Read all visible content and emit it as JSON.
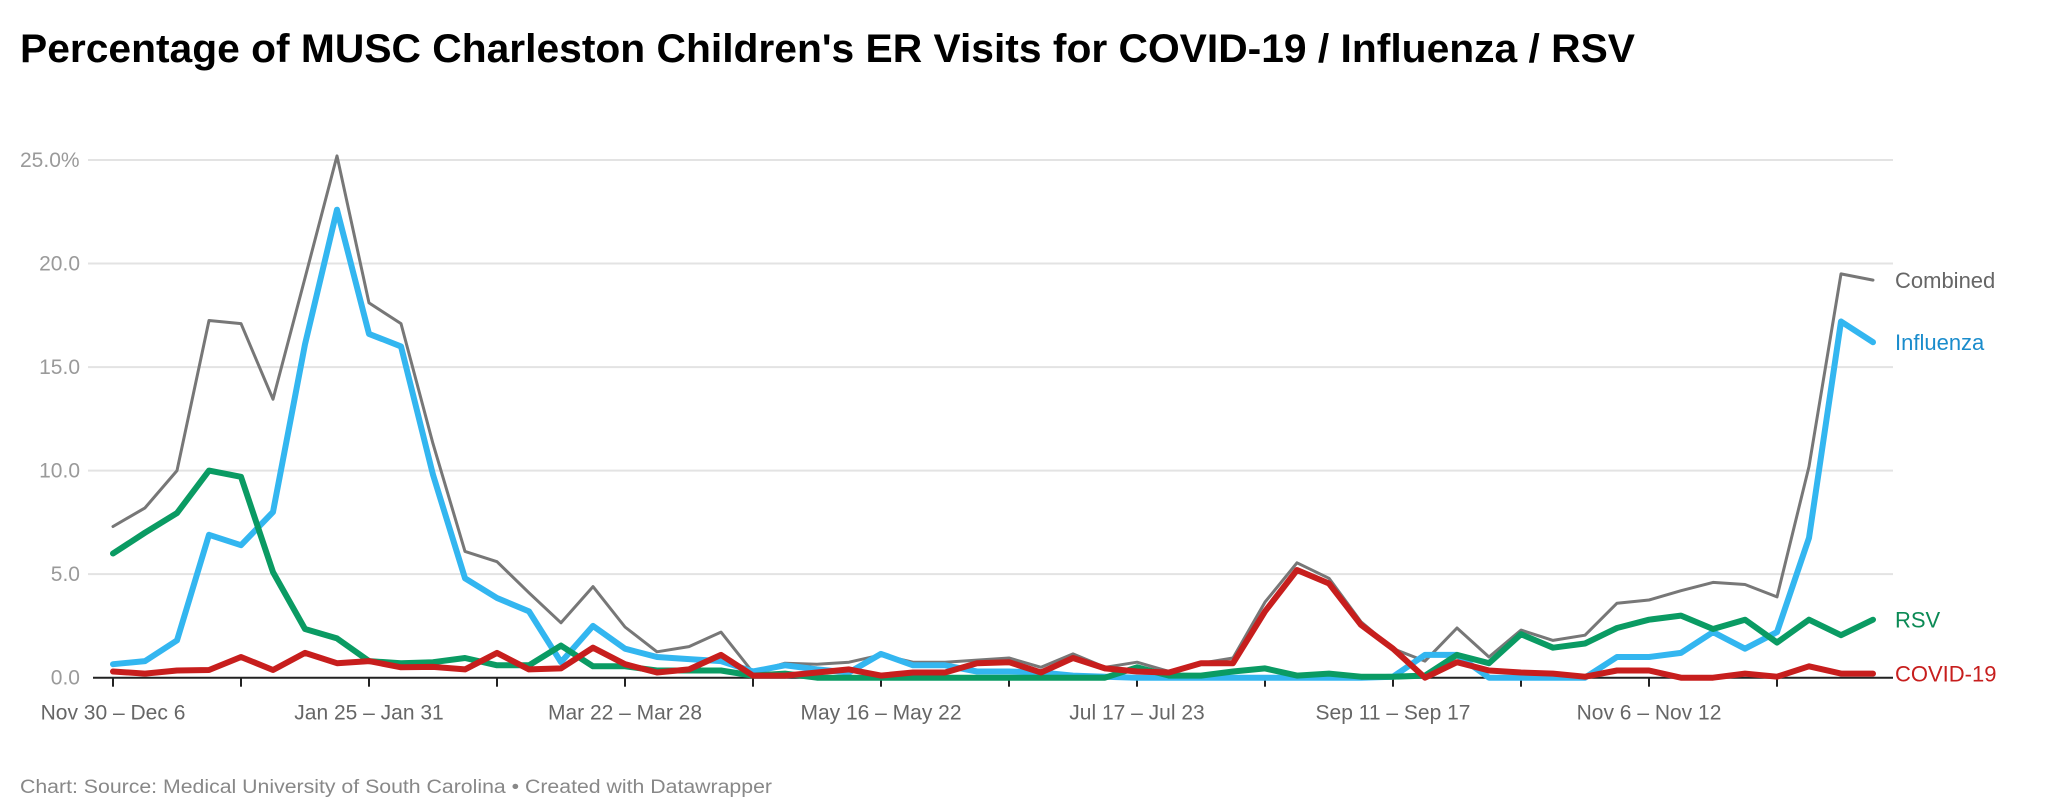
{
  "title": "Percentage of MUSC Charleston Children's ER Visits for COVID-19 / Influenza / RSV",
  "footer": "Chart: Source: Medical University of South Carolina • Created with Datawrapper",
  "chart_data": {
    "type": "line",
    "title": "Percentage of MUSC Charleston Children's ER Visits for COVID-19 / Influenza / RSV",
    "xlabel": "",
    "ylabel": "",
    "ylim": [
      0,
      25
    ],
    "grid": true,
    "legend": "direct labels at line ends (right)",
    "y_ticks": [
      {
        "value": 0,
        "label": "0.0"
      },
      {
        "value": 5,
        "label": "5.0"
      },
      {
        "value": 10,
        "label": "10.0"
      },
      {
        "value": 15,
        "label": "15.0"
      },
      {
        "value": 20,
        "label": "20.0"
      },
      {
        "value": 25,
        "label": "25.0%"
      }
    ],
    "x_tick_labels": [
      {
        "week": 0,
        "label": "Nov 30 – Dec 6"
      },
      {
        "week": 8,
        "label": "Jan 25 – Jan 31"
      },
      {
        "week": 16,
        "label": "Mar 22 – Mar 28"
      },
      {
        "week": 24,
        "label": "May 16 – May 22"
      },
      {
        "week": 32,
        "label": "Jul 17 – Jul 23"
      },
      {
        "week": 40,
        "label": "Sep 11 – Sep 17"
      },
      {
        "week": 48,
        "label": "Nov 6 – Nov 12"
      }
    ],
    "series": [
      {
        "name": "Combined",
        "color": "#777777",
        "label_color": "#666666",
        "values": [
          7.3,
          8.2,
          10.0,
          17.25,
          17.1,
          13.45,
          19.3,
          25.2,
          18.1,
          17.1,
          11.3,
          6.1,
          5.6,
          4.1,
          2.65,
          4.4,
          2.45,
          1.25,
          1.5,
          2.2,
          0.25,
          0.7,
          0.65,
          0.75,
          1.1,
          0.75,
          0.75,
          0.85,
          0.95,
          0.5,
          1.15,
          0.5,
          0.75,
          0.3,
          0.7,
          0.95,
          3.65,
          5.55,
          4.8,
          2.7,
          1.4,
          0.8,
          2.4,
          1.0,
          2.3,
          1.8,
          2.05,
          3.6,
          3.75,
          4.2,
          4.6,
          4.5,
          3.9,
          10.2,
          19.5,
          19.2
        ]
      },
      {
        "name": "Influenza",
        "color": "#33b6f0",
        "label_color": "#1a8ccc",
        "values": [
          0.65,
          0.8,
          1.8,
          6.9,
          6.4,
          8.0,
          16.1,
          22.6,
          16.6,
          16.0,
          9.8,
          4.8,
          3.85,
          3.2,
          0.75,
          2.5,
          1.4,
          1.0,
          0.9,
          0.8,
          0.3,
          0.6,
          0.4,
          0.25,
          1.15,
          0.6,
          0.6,
          0.3,
          0.3,
          0.25,
          0.1,
          0.05,
          0,
          0,
          0,
          0,
          0,
          0,
          0,
          0,
          0.05,
          1.1,
          1.1,
          0,
          0,
          0,
          0,
          1.0,
          1.0,
          1.2,
          2.2,
          1.4,
          2.2,
          6.75,
          17.2,
          16.2
        ]
      },
      {
        "name": "RSV",
        "color": "#0a9b63",
        "label_color": "#0b8a55",
        "values": [
          6.0,
          7.0,
          7.95,
          10.0,
          9.7,
          5.1,
          2.35,
          1.9,
          0.8,
          0.7,
          0.75,
          0.95,
          0.6,
          0.6,
          1.55,
          0.55,
          0.55,
          0.35,
          0.35,
          0.35,
          0.1,
          0.2,
          0,
          0,
          0,
          0,
          0,
          0,
          0,
          0,
          0,
          0,
          0.5,
          0.1,
          0.1,
          0.3,
          0.45,
          0.1,
          0.2,
          0.05,
          0.05,
          0.1,
          1.1,
          0.7,
          2.1,
          1.45,
          1.65,
          2.4,
          2.8,
          3.0,
          2.35,
          2.8,
          1.7,
          2.8,
          2.05,
          2.8
        ]
      },
      {
        "name": "COVID-19",
        "color": "#c71e1d",
        "label_color": "#c71e1d",
        "values": [
          0.3,
          0.2,
          0.35,
          0.37,
          1.0,
          0.37,
          1.2,
          0.7,
          0.8,
          0.5,
          0.52,
          0.4,
          1.2,
          0.4,
          0.45,
          1.45,
          0.65,
          0.25,
          0.4,
          1.1,
          0.1,
          0.1,
          0.25,
          0.4,
          0.1,
          0.25,
          0.25,
          0.7,
          0.75,
          0.25,
          0.95,
          0.45,
          0.3,
          0.25,
          0.7,
          0.7,
          3.2,
          5.2,
          4.55,
          2.55,
          1.4,
          0,
          0.75,
          0.35,
          0.25,
          0.2,
          0.05,
          0.35,
          0.35,
          0,
          0,
          0.2,
          0.05,
          0.55,
          0.2,
          0.2
        ]
      }
    ]
  }
}
